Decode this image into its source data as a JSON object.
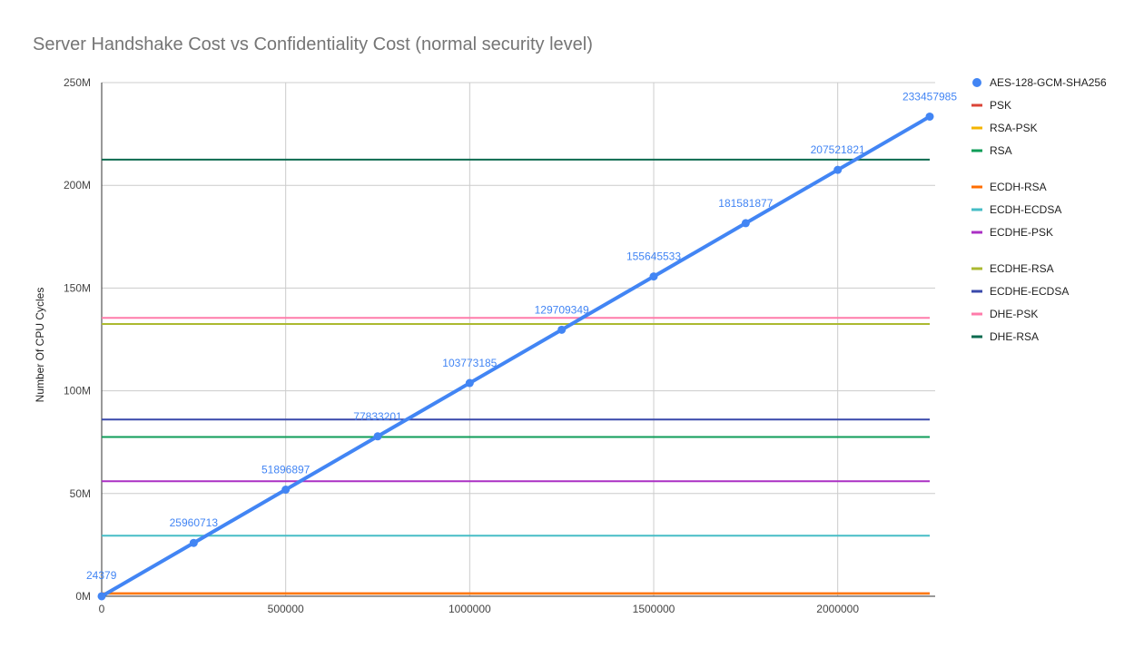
{
  "chart_data": {
    "type": "line",
    "title": "Server Handshake Cost vs Confidentiality Cost (normal security level)",
    "xlabel": "",
    "ylabel": "Number Of CPU Cycles",
    "xlim": [
      0,
      2250000
    ],
    "ylim": [
      0,
      250000000
    ],
    "x_ticks": [
      0,
      500000,
      1000000,
      1500000,
      2000000
    ],
    "x_tick_labels": [
      "0",
      "500000",
      "1000000",
      "1500000",
      "2000000"
    ],
    "y_ticks": [
      0,
      50000000,
      100000000,
      150000000,
      200000000,
      250000000
    ],
    "y_tick_labels": [
      "0M",
      "50M",
      "100M",
      "150M",
      "200M",
      "250M"
    ],
    "grid": true,
    "legend_position": "right",
    "main_series": {
      "name": "AES-128-GCM-SHA256",
      "color": "#4285f4",
      "x": [
        0,
        250000,
        500000,
        750000,
        1000000,
        1250000,
        1500000,
        1750000,
        2000000,
        2250000
      ],
      "values": [
        24379,
        25960713,
        51896897,
        77833201,
        103773185,
        129709349,
        155645533,
        181581877,
        207521821,
        233457985
      ],
      "labels": [
        "24379",
        "25960713",
        "51896897",
        "77833201",
        "103773185",
        "129709349",
        "155645533",
        "181581877",
        "207521821",
        "233457985"
      ]
    },
    "series": [
      {
        "name": "PSK",
        "color": "#db4437",
        "value": 1200000
      },
      {
        "name": "RSA-PSK",
        "color": "#f4b400",
        "value": 1300000
      },
      {
        "name": "RSA",
        "color": "#0f9d58",
        "value": 77500000
      },
      {
        "name": "ECDH-RSA",
        "color": "#ff6d01",
        "value": 1500000
      },
      {
        "name": "ECDH-ECDSA",
        "color": "#46bdc6",
        "value": 29500000
      },
      {
        "name": "ECDHE-PSK",
        "color": "#ab30c4",
        "value": 56000000
      },
      {
        "name": "ECDHE-RSA",
        "color": "#abb930",
        "value": 132500000
      },
      {
        "name": "ECDHE-ECDSA",
        "color": "#3949ab",
        "value": 86000000
      },
      {
        "name": "DHE-PSK",
        "color": "#ff7baa",
        "value": 135500000
      },
      {
        "name": "DHE-RSA",
        "color": "#0b6a4f",
        "value": 212500000
      }
    ],
    "legend_order": [
      "AES-128-GCM-SHA256",
      "PSK",
      "RSA-PSK",
      "RSA",
      "ECDH-RSA",
      "ECDH-ECDSA",
      "ECDHE-PSK",
      "ECDHE-RSA",
      "ECDHE-ECDSA",
      "DHE-PSK",
      "DHE-RSA"
    ]
  }
}
